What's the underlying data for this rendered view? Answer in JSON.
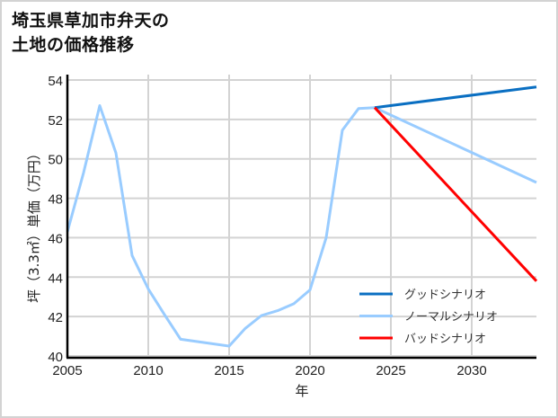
{
  "title": {
    "line1": "埼玉県草加市弁天の",
    "line2": "土地の価格推移"
  },
  "axes": {
    "xlabel": "年",
    "ylabel": "坪（3.3㎡）単価（万円）",
    "xticks": [
      "2005",
      "2010",
      "2015",
      "2020",
      "2025",
      "2030"
    ],
    "yticks": [
      "40",
      "42",
      "44",
      "46",
      "48",
      "50",
      "52",
      "54"
    ]
  },
  "legend": {
    "items": [
      {
        "label": "グッドシナリオ",
        "color": "#0a6fc2"
      },
      {
        "label": "ノーマルシナリオ",
        "color": "#99ccff"
      },
      {
        "label": "バッドシナリオ",
        "color": "#ff0000"
      }
    ]
  },
  "chart_data": {
    "type": "line",
    "title": "埼玉県草加市弁天の土地の価格推移",
    "xlabel": "年",
    "ylabel": "坪（3.3㎡）単価（万円）",
    "xlim": [
      2005,
      2034
    ],
    "ylim": [
      40,
      54
    ],
    "grid": true,
    "legend_position": "lower right",
    "series": [
      {
        "name": "ノーマルシナリオ",
        "color": "#99ccff",
        "x": [
          2005,
          2006,
          2007,
          2008,
          2009,
          2010,
          2011,
          2012,
          2015,
          2016,
          2017,
          2018,
          2019,
          2020,
          2021,
          2022,
          2023,
          2024,
          2034
        ],
        "values": [
          46.3,
          49.3,
          52.7,
          50.3,
          45.1,
          43.4,
          42.1,
          40.85,
          40.5,
          41.4,
          42.05,
          42.3,
          42.65,
          43.35,
          46.0,
          51.45,
          52.55,
          52.6,
          48.8
        ]
      },
      {
        "name": "グッドシナリオ",
        "color": "#0a6fc2",
        "x": [
          2024,
          2034
        ],
        "values": [
          52.6,
          53.65
        ]
      },
      {
        "name": "バッドシナリオ",
        "color": "#ff0000",
        "x": [
          2024,
          2034
        ],
        "values": [
          52.6,
          43.8
        ]
      }
    ]
  }
}
